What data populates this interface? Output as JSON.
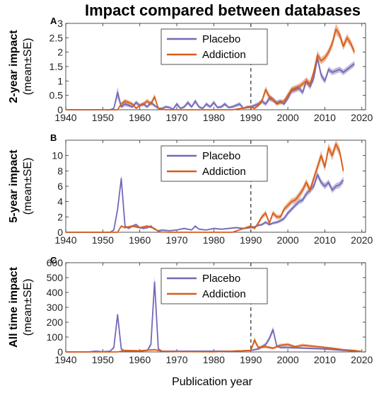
{
  "figure": {
    "title": "Impact compared between databases",
    "xlabel": "Publication year",
    "colors": {
      "placebo": "#7468b8",
      "addiction": "#d55e1b",
      "dashed": "#555555"
    }
  },
  "chart_data": [
    {
      "type": "line",
      "panel": "A",
      "ylabel_main": "2-year impact",
      "ylabel_sub": "(mean±SE)",
      "xlim": [
        1940,
        2021
      ],
      "ylim": [
        0,
        3
      ],
      "xticks": [
        1940,
        1950,
        1960,
        1970,
        1980,
        1990,
        2000,
        2010,
        2020
      ],
      "yticks": [
        0,
        0.5,
        1,
        1.5,
        2,
        2.5,
        3
      ],
      "ytick_labels": [
        "0",
        "0.5",
        "1",
        "1.5",
        "2",
        "2.5",
        "3"
      ],
      "vline": 1990,
      "legend_position": "top-center",
      "series": [
        {
          "name": "Placebo",
          "x": [
            1940,
            1946,
            1950,
            1952,
            1953,
            1954,
            1955,
            1956,
            1957,
            1958,
            1959,
            1960,
            1961,
            1962,
            1963,
            1964,
            1965,
            1966,
            1967,
            1968,
            1969,
            1970,
            1971,
            1972,
            1973,
            1974,
            1975,
            1976,
            1977,
            1978,
            1979,
            1980,
            1981,
            1982,
            1983,
            1984,
            1985,
            1986,
            1987,
            1988,
            1989,
            1990,
            1991,
            1992,
            1993,
            1994,
            1995,
            1996,
            1997,
            1998,
            1999,
            2000,
            2001,
            2002,
            2003,
            2004,
            2005,
            2006,
            2007,
            2008,
            2009,
            2010,
            2011,
            2012,
            2013,
            2014,
            2015,
            2016,
            2017,
            2018
          ],
          "y": [
            0,
            0,
            0,
            0,
            0.05,
            0.6,
            0.1,
            0.2,
            0.15,
            0.1,
            0.25,
            0.15,
            0.2,
            0.1,
            0.25,
            0.15,
            0.05,
            0.05,
            0.1,
            0.08,
            0.02,
            0.2,
            0.05,
            0.1,
            0.25,
            0.1,
            0.3,
            0.1,
            0.05,
            0.2,
            0.1,
            0.25,
            0.08,
            0.1,
            0.2,
            0.08,
            0.1,
            0.15,
            0.2,
            0.05,
            0.1,
            0.1,
            0.15,
            0.2,
            0.3,
            0.2,
            0.4,
            0.35,
            0.25,
            0.3,
            0.2,
            0.4,
            0.65,
            0.7,
            0.75,
            0.6,
            1.0,
            0.8,
            1.1,
            1.8,
            1.2,
            1.0,
            1.4,
            1.3,
            1.35,
            1.4,
            1.3,
            1.4,
            1.5,
            1.6
          ],
          "se": [
            0,
            0,
            0,
            0,
            0.03,
            0.2,
            0.05,
            0.08,
            0.06,
            0.05,
            0.08,
            0.06,
            0.07,
            0.05,
            0.08,
            0.06,
            0.03,
            0.03,
            0.05,
            0.04,
            0.02,
            0.08,
            0.03,
            0.05,
            0.08,
            0.05,
            0.08,
            0.05,
            0.03,
            0.07,
            0.05,
            0.08,
            0.04,
            0.05,
            0.07,
            0.04,
            0.05,
            0.06,
            0.07,
            0.03,
            0.05,
            0.05,
            0.06,
            0.07,
            0.08,
            0.07,
            0.1,
            0.09,
            0.07,
            0.08,
            0.06,
            0.08,
            0.1,
            0.1,
            0.1,
            0.09,
            0.12,
            0.1,
            0.12,
            0.15,
            0.12,
            0.1,
            0.1,
            0.1,
            0.1,
            0.1,
            0.1,
            0.1,
            0.1,
            0.1
          ]
        },
        {
          "name": "Addiction",
          "x": [
            1940,
            1954,
            1955,
            1956,
            1957,
            1958,
            1959,
            1960,
            1961,
            1962,
            1963,
            1964,
            1965,
            1966,
            1967,
            1968,
            1969,
            1970,
            1975,
            1980,
            1985,
            1990,
            1991,
            1992,
            1993,
            1994,
            1995,
            1996,
            1997,
            1998,
            1999,
            2000,
            2001,
            2002,
            2003,
            2004,
            2005,
            2006,
            2007,
            2008,
            2009,
            2010,
            2011,
            2012,
            2013,
            2014,
            2015,
            2016,
            2017,
            2018
          ],
          "y": [
            0,
            0,
            0.2,
            0.3,
            0.25,
            0.2,
            0.05,
            0.15,
            0.2,
            0.3,
            0.2,
            0.45,
            0.05,
            0.02,
            0,
            0,
            0,
            0,
            0,
            0,
            0,
            0.1,
            0.05,
            0.15,
            0.3,
            0.7,
            0.45,
            0.35,
            0.2,
            0.25,
            0.3,
            0.5,
            0.7,
            0.75,
            0.8,
            0.9,
            1.0,
            0.9,
            1.3,
            1.9,
            1.7,
            1.8,
            2.0,
            2.3,
            2.8,
            2.6,
            2.2,
            2.5,
            2.3,
            2.0
          ],
          "se": [
            0,
            0,
            0.06,
            0.08,
            0.07,
            0.06,
            0.03,
            0.05,
            0.06,
            0.08,
            0.06,
            0.1,
            0.03,
            0.02,
            0,
            0,
            0,
            0,
            0,
            0,
            0,
            0.05,
            0.03,
            0.06,
            0.08,
            0.12,
            0.1,
            0.08,
            0.06,
            0.07,
            0.08,
            0.1,
            0.1,
            0.1,
            0.1,
            0.1,
            0.12,
            0.1,
            0.12,
            0.15,
            0.12,
            0.12,
            0.13,
            0.15,
            0.18,
            0.15,
            0.13,
            0.14,
            0.13,
            0.12
          ]
        }
      ]
    },
    {
      "type": "line",
      "panel": "B",
      "ylabel_main": "5-year impact",
      "ylabel_sub": "(mean±SE)",
      "xlim": [
        1940,
        2021
      ],
      "ylim": [
        0,
        12
      ],
      "xticks": [
        1940,
        1950,
        1960,
        1970,
        1980,
        1990,
        2000,
        2010,
        2020
      ],
      "yticks": [
        0,
        2,
        4,
        6,
        8,
        10
      ],
      "ytick_labels": [
        "0",
        "2",
        "4",
        "6",
        "8",
        "10"
      ],
      "vline": 1990,
      "legend_position": "top-center",
      "series": [
        {
          "name": "Placebo",
          "x": [
            1940,
            1950,
            1952,
            1953,
            1954,
            1955,
            1956,
            1957,
            1958,
            1959,
            1960,
            1961,
            1962,
            1963,
            1964,
            1965,
            1966,
            1968,
            1970,
            1972,
            1974,
            1975,
            1976,
            1978,
            1980,
            1982,
            1984,
            1986,
            1988,
            1990,
            1991,
            1992,
            1993,
            1994,
            1995,
            1996,
            1997,
            1998,
            1999,
            2000,
            2001,
            2002,
            2003,
            2004,
            2005,
            2006,
            2007,
            2008,
            2009,
            2010,
            2011,
            2012,
            2013,
            2014,
            2015
          ],
          "y": [
            0,
            0,
            0,
            0.3,
            3.0,
            7.0,
            0.8,
            0.5,
            0.8,
            1.0,
            0.6,
            0.5,
            0.6,
            0.8,
            0.4,
            0.2,
            0.3,
            0.2,
            0.3,
            0.5,
            0.3,
            0.8,
            0.4,
            0.3,
            0.5,
            0.4,
            0.5,
            0.6,
            0.5,
            0.6,
            0.7,
            0.9,
            1.0,
            1.3,
            1.0,
            1.2,
            1.3,
            1.5,
            1.8,
            2.5,
            3.0,
            3.5,
            4.0,
            4.2,
            5.0,
            5.5,
            6.0,
            7.5,
            6.5,
            6.0,
            6.5,
            5.5,
            6.0,
            6.2,
            6.8
          ],
          "se": [
            0,
            0,
            0,
            0.1,
            0.4,
            0.5,
            0.15,
            0.1,
            0.15,
            0.15,
            0.12,
            0.1,
            0.12,
            0.15,
            0.08,
            0.05,
            0.06,
            0.05,
            0.06,
            0.1,
            0.06,
            0.15,
            0.08,
            0.06,
            0.1,
            0.08,
            0.1,
            0.12,
            0.1,
            0.12,
            0.13,
            0.15,
            0.16,
            0.2,
            0.16,
            0.18,
            0.2,
            0.22,
            0.25,
            0.3,
            0.3,
            0.3,
            0.35,
            0.35,
            0.4,
            0.4,
            0.4,
            0.45,
            0.4,
            0.4,
            0.4,
            0.4,
            0.4,
            0.4,
            0.45
          ]
        },
        {
          "name": "Addiction",
          "x": [
            1940,
            1954,
            1955,
            1956,
            1958,
            1960,
            1962,
            1964,
            1965,
            1966,
            1968,
            1970,
            1975,
            1980,
            1985,
            1990,
            1991,
            1992,
            1993,
            1994,
            1995,
            1996,
            1997,
            1998,
            1999,
            2000,
            2001,
            2002,
            2003,
            2004,
            2005,
            2006,
            2007,
            2008,
            2009,
            2010,
            2011,
            2012,
            2013,
            2014,
            2015
          ],
          "y": [
            0,
            0,
            0.8,
            0.6,
            0.8,
            0.6,
            0.8,
            0.5,
            0.1,
            0.05,
            0,
            0,
            0,
            0,
            0,
            0.8,
            0.5,
            1.2,
            2.0,
            2.5,
            1.2,
            2.5,
            2.0,
            2.0,
            3.0,
            3.5,
            4.0,
            4.2,
            4.8,
            5.5,
            6.5,
            5.5,
            7.0,
            8.5,
            10.0,
            8.5,
            11.0,
            10.0,
            11.5,
            10.5,
            8.0
          ],
          "se": [
            0,
            0,
            0.15,
            0.12,
            0.15,
            0.12,
            0.15,
            0.1,
            0.05,
            0.03,
            0,
            0,
            0,
            0,
            0,
            0.2,
            0.15,
            0.25,
            0.3,
            0.35,
            0.25,
            0.35,
            0.3,
            0.3,
            0.35,
            0.4,
            0.4,
            0.4,
            0.45,
            0.45,
            0.5,
            0.45,
            0.5,
            0.55,
            0.6,
            0.55,
            0.6,
            0.6,
            0.6,
            0.6,
            0.55
          ]
        }
      ]
    },
    {
      "type": "line",
      "panel": "C",
      "ylabel_main": "All time impact",
      "ylabel_sub": "(mean±SE)",
      "xlim": [
        1940,
        2021
      ],
      "ylim": [
        0,
        600
      ],
      "xticks": [
        1940,
        1950,
        1960,
        1970,
        1980,
        1990,
        2000,
        2010,
        2020
      ],
      "yticks": [
        0,
        100,
        200,
        300,
        400,
        500,
        600
      ],
      "ytick_labels": [
        "0",
        "100",
        "200",
        "300",
        "400",
        "500",
        "600"
      ],
      "vline": 1990,
      "legend_position": "top-center",
      "series": [
        {
          "name": "Placebo",
          "x": [
            1940,
            1946,
            1948,
            1950,
            1952,
            1953,
            1954,
            1955,
            1956,
            1957,
            1958,
            1960,
            1962,
            1963,
            1964,
            1965,
            1966,
            1968,
            1970,
            1975,
            1980,
            1985,
            1990,
            1992,
            1994,
            1995,
            1996,
            1997,
            1998,
            2000,
            2005,
            2010,
            2015,
            2020
          ],
          "y": [
            0,
            0,
            5,
            2,
            5,
            30,
            250,
            20,
            5,
            5,
            5,
            5,
            10,
            50,
            470,
            20,
            5,
            5,
            5,
            5,
            5,
            5,
            10,
            20,
            50,
            90,
            150,
            40,
            30,
            30,
            25,
            20,
            10,
            2
          ],
          "se": [
            0,
            0,
            3,
            2,
            3,
            10,
            15,
            8,
            3,
            3,
            3,
            3,
            5,
            15,
            40,
            8,
            3,
            3,
            3,
            3,
            3,
            3,
            5,
            8,
            12,
            15,
            20,
            10,
            8,
            8,
            6,
            5,
            4,
            2
          ]
        },
        {
          "name": "Addiction",
          "x": [
            1940,
            1954,
            1956,
            1960,
            1964,
            1966,
            1970,
            1980,
            1990,
            1991,
            1992,
            1994,
            1996,
            1998,
            2000,
            2002,
            2004,
            2006,
            2008,
            2010,
            2012,
            2015,
            2018,
            2020
          ],
          "y": [
            0,
            0,
            10,
            8,
            15,
            5,
            2,
            1,
            10,
            80,
            30,
            35,
            25,
            45,
            50,
            35,
            45,
            40,
            35,
            30,
            25,
            15,
            10,
            3
          ],
          "se": [
            0,
            0,
            5,
            4,
            6,
            3,
            2,
            1,
            5,
            20,
            10,
            10,
            8,
            10,
            10,
            8,
            10,
            9,
            8,
            7,
            6,
            5,
            4,
            2
          ]
        }
      ]
    }
  ]
}
